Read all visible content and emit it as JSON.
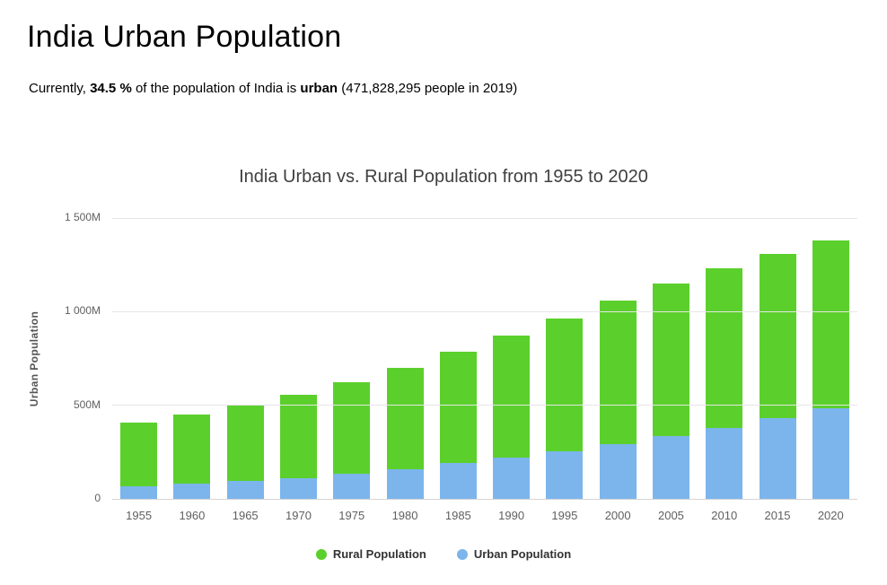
{
  "page": {
    "title": "India Urban Population",
    "subtitle": {
      "prefix": "Currently, ",
      "percent": "34.5 %",
      "middle": " of the population of India is ",
      "urban_word": "urban",
      "suffix": " (471,828,295 people in 2019)"
    }
  },
  "chart_data": {
    "type": "bar",
    "stacked": true,
    "title": "India Urban vs. Rural Population from 1955 to 2020",
    "ylabel": "Urban Population",
    "xlabel": "",
    "unit": "millions of people",
    "ylim": [
      0,
      1500
    ],
    "yticks": [
      0,
      500,
      1000,
      1500
    ],
    "ytick_labels": [
      "0",
      "500M",
      "1 000M",
      "1 500M"
    ],
    "grid": true,
    "legend_position": "bottom",
    "categories": [
      "1955",
      "1960",
      "1965",
      "1970",
      "1975",
      "1980",
      "1985",
      "1990",
      "1995",
      "2000",
      "2005",
      "2010",
      "2015",
      "2020"
    ],
    "series": [
      {
        "name": "Rural Population",
        "color": "#5bd02c",
        "stack_position": "top",
        "values": [
          340,
          370,
          405,
          445,
          491,
          539,
          594,
          651,
          708,
          766,
          814,
          854,
          881,
          897
        ]
      },
      {
        "name": "Urban Population",
        "color": "#7cb5ec",
        "stack_position": "bottom",
        "values": [
          69,
          80,
          94,
          110,
          132,
          160,
          190,
          222,
          256,
          291,
          334,
          380,
          429,
          483
        ]
      }
    ]
  }
}
